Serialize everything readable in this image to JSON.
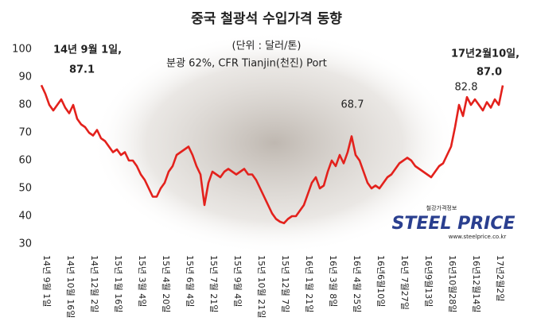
{
  "chart_data": {
    "type": "line",
    "title": "중국 철광석 수입가격 동향",
    "subtitle": "(단위 : 달러/톤)",
    "note": "분광 62%, CFR Tianjin(천진) Port",
    "annotations": [
      "14년 9월 1일,",
      "87.1",
      "17년2월10일,",
      "87.0",
      "82.8",
      "68.7"
    ],
    "logo": {
      "korean": "철강가격정보",
      "name": "STEEL PRICE",
      "url": "www.steelprice.co.kr"
    },
    "categories": [
      "14년 9월 1일",
      null,
      null,
      null,
      null,
      null,
      "14년 10월 16일",
      null,
      null,
      null,
      null,
      null,
      "14년 12월 2일",
      null,
      null,
      null,
      null,
      null,
      "15년 1월 16일",
      null,
      null,
      null,
      null,
      null,
      "15년 3월 4일",
      null,
      null,
      null,
      null,
      null,
      "15년 4월 20일",
      null,
      null,
      null,
      null,
      null,
      "15년 6월 4일",
      null,
      null,
      null,
      null,
      null,
      "15년 7월 21일",
      null,
      null,
      null,
      null,
      null,
      "15년 9월 4일",
      null,
      null,
      null,
      null,
      null,
      "15년 10월 21일",
      null,
      null,
      null,
      null,
      null,
      "15년 12월 7일",
      null,
      null,
      null,
      null,
      null,
      "16년 1월 21일",
      null,
      null,
      null,
      null,
      null,
      "16년 3월 8일",
      null,
      null,
      null,
      null,
      null,
      "16년 4월 25일",
      null,
      null,
      null,
      null,
      null,
      "16년6월10일",
      null,
      null,
      null,
      null,
      null,
      "16년 7월27일",
      null,
      null,
      null,
      null,
      null,
      "16년9월13일",
      null,
      null,
      null,
      null,
      null,
      "16년10월28일",
      null,
      null,
      null,
      null,
      null,
      "16년12월14일",
      null,
      null,
      null,
      null,
      null,
      "17년2월2일",
      null,
      null
    ],
    "values": [
      87.1,
      84,
      80,
      78,
      80,
      82,
      79,
      77,
      80,
      75,
      73,
      72,
      70,
      69,
      71,
      68,
      67,
      65,
      63,
      64,
      62,
      63,
      60,
      60,
      58,
      55,
      53,
      50,
      47,
      47,
      50,
      52,
      56,
      58,
      62,
      63,
      64,
      65,
      62,
      58,
      55,
      44,
      52,
      56,
      55,
      54,
      56,
      57,
      56,
      55,
      56,
      57,
      55,
      55,
      53,
      50,
      47,
      44,
      41,
      39,
      38,
      37.5,
      39,
      40,
      40,
      42,
      44,
      48,
      52,
      54,
      50,
      51,
      56,
      60,
      58,
      62,
      59,
      63,
      68.7,
      62,
      60,
      56,
      52,
      50,
      51,
      50,
      52,
      54,
      55,
      57,
      59,
      60,
      61,
      60,
      58,
      57,
      56,
      55,
      54,
      56,
      58,
      59,
      62,
      65,
      72,
      80,
      76,
      82.8,
      80,
      82,
      80,
      78,
      81,
      79,
      82,
      80,
      87.0
    ],
    "color": "#e3211c",
    "ylim": [
      30,
      100
    ],
    "yticks": [
      30,
      40,
      50,
      60,
      70,
      80,
      90,
      100
    ],
    "grid": false
  }
}
